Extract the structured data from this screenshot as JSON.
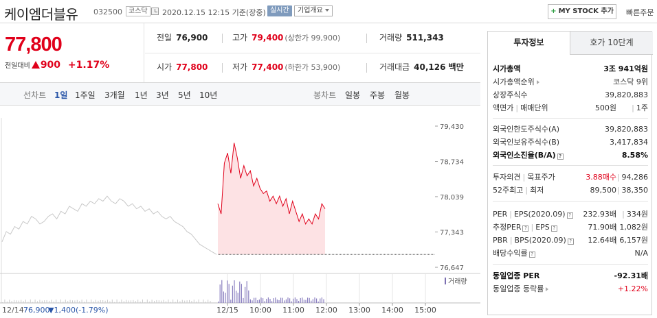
{
  "header": {
    "stock_name": "케이엠더블유",
    "stock_code": "032500",
    "market_badge": "코스닥",
    "datetime": "2020.12.15  12:15  기준(장중)",
    "realtime_badge": "실시간",
    "company_overview": "기업개요",
    "mystock_label": "MY STOCK 추가",
    "quick_order": "빠른주문"
  },
  "price": {
    "current": "77,800",
    "change_label": "전일대비",
    "change_value": "900",
    "change_pct": "+1.17%"
  },
  "quotes": {
    "prev_close_label": "전일",
    "prev_close": "76,900",
    "high_label": "고가",
    "high": "79,400",
    "upper_limit": "(상한가 99,900)",
    "volume_label": "거래량",
    "volume": "511,343",
    "open_label": "시가",
    "open": "77,800",
    "low_label": "저가",
    "low": "77,400",
    "lower_limit": "(하한가 53,900)",
    "value_label": "거래대금",
    "value": "40,126 백만"
  },
  "chart_tabs": {
    "line_label": "선차트",
    "periods": [
      "1일",
      "1주일",
      "3개월",
      "1년",
      "3년",
      "5년",
      "10년"
    ],
    "candle_label": "봉차트",
    "candles": [
      "일봉",
      "주봉",
      "월봉"
    ]
  },
  "chart_data": {
    "type": "line",
    "yticks": [
      "79,430",
      "78,734",
      "78,039",
      "77,343",
      "76,647"
    ],
    "ytick_values": [
      79430,
      78734,
      78039,
      77343,
      76647
    ],
    "ylim": [
      76647,
      79430
    ],
    "xticks": [
      "12/15",
      "10:00",
      "11:00",
      "12:00",
      "13:00",
      "14:00",
      "15:00"
    ],
    "volume_legend": "거래량",
    "prev_day_footer": {
      "date": "12/14",
      "close": "76,900",
      "change": "▼1,400",
      "change_pct": "(-1.79%)"
    },
    "prev_close": 76900,
    "series": [
      {
        "name": "12/14",
        "color": "#c8c8c8",
        "values": [
          77150,
          77350,
          77300,
          77450,
          77400,
          77550,
          77500,
          77650,
          77600,
          77500,
          77550,
          77650,
          77700,
          77600,
          77750,
          77700,
          77850,
          77800,
          77750,
          77900,
          77850,
          77950,
          77900,
          78000,
          77950,
          78050,
          77950,
          77900,
          78000,
          77950,
          77850,
          77900,
          77800,
          77850,
          77750,
          77800,
          77700,
          77750,
          77650,
          77600,
          77650,
          77550,
          77500,
          77450,
          77350,
          77300,
          77200,
          77100,
          77050,
          77000,
          76950,
          76900
        ]
      },
      {
        "name": "12/15",
        "color": "#e0001a",
        "values": [
          77900,
          77700,
          78700,
          78900,
          78500,
          79100,
          78800,
          78400,
          78650,
          78450,
          78550,
          78250,
          78400,
          78200,
          78100,
          78150,
          77950,
          78050,
          77900,
          78050,
          77850,
          78000,
          77700,
          77950,
          77750,
          77550,
          77700,
          77500,
          77600,
          77500,
          77700,
          77600,
          77900,
          77800
        ]
      }
    ]
  },
  "right_panel": {
    "tab_active": "투자정보",
    "tab_inactive": "호가 10단계",
    "market_cap_label": "시가총액",
    "market_cap": "3조 941억원",
    "market_rank_label": "시가총액순위",
    "market_rank": "코스닥 9위",
    "shares_label": "상장주식수",
    "shares": "39,820,883",
    "par_label": "액면가",
    "trade_unit_label": "매매단위",
    "par": "500원",
    "trade_unit": "1주",
    "foreign_limit_label": "외국인한도주식수(A)",
    "foreign_limit": "39,820,883",
    "foreign_hold_label": "외국인보유주식수(B)",
    "foreign_hold": "3,417,834",
    "foreign_ratio_label": "외국인소진율(B/A)",
    "foreign_ratio": "8.58%",
    "opinion_label": "투자의견",
    "target_label": "목표주가",
    "opinion": "3.88매수",
    "target": "94,286",
    "w52_label": "52주최고",
    "w52_low_label": "최저",
    "w52_high": "89,500",
    "w52_low": "38,350",
    "per_label": "PER",
    "eps_label": "EPS(2020.09)",
    "per": "232.93배",
    "eps": "334원",
    "est_per_label": "추정PER",
    "est_eps_label": "EPS",
    "est_per": "71.90배",
    "est_eps": "1,082원",
    "pbr_label": "PBR",
    "bps_label": "BPS(2020.09)",
    "pbr": "12.64배",
    "bps": "6,157원",
    "dividend_label": "배당수익률",
    "dividend": "N/A",
    "industry_per_label": "동일업종 PER",
    "industry_per": "-92.31배",
    "industry_rate_label": "동일업종 등락률",
    "industry_rate": "+1.22%"
  }
}
